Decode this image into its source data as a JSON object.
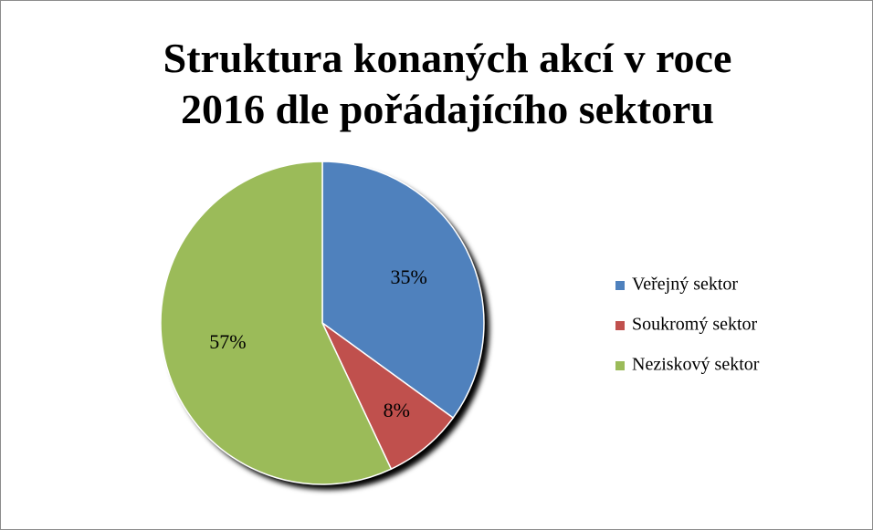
{
  "chart_data": {
    "type": "pie",
    "title": "Struktura konaných akcí v roce 2016 dle pořádajícího sektoru",
    "categories": [
      "Veřejný sektor",
      "Soukromý sektor",
      "Neziskový sektor"
    ],
    "values": [
      35,
      8,
      57
    ],
    "value_labels": [
      "35%",
      "8%",
      "57%"
    ],
    "colors": [
      "#4f81bd",
      "#c0504d",
      "#9bbb59"
    ],
    "legend": "right"
  }
}
